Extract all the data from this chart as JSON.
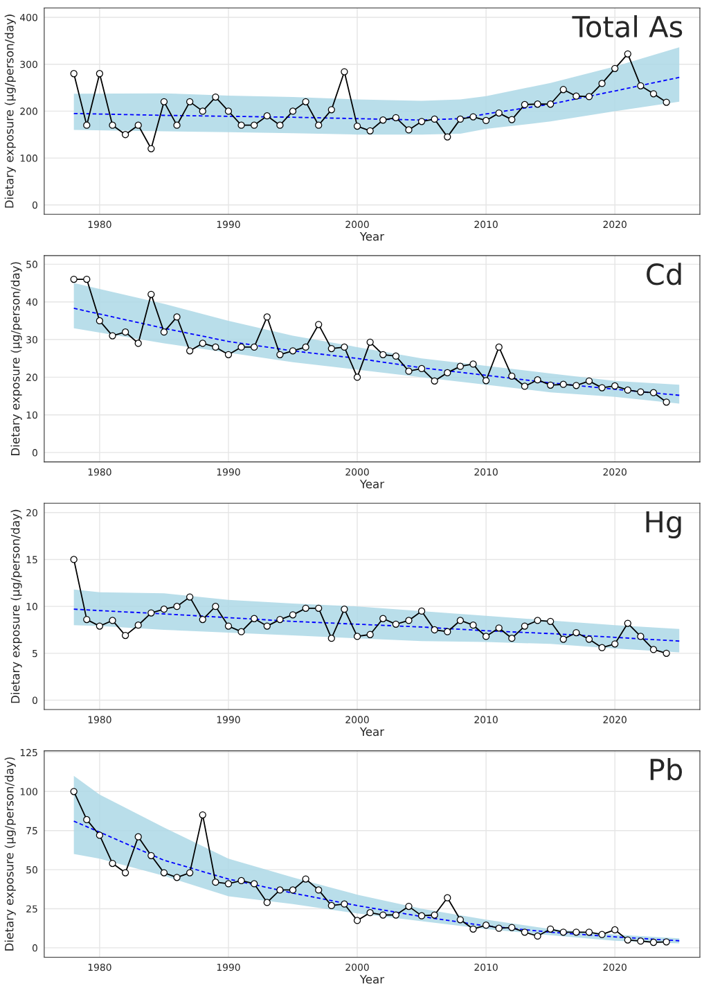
{
  "chart_data": [
    {
      "type": "line",
      "title": "Total As",
      "xlabel": "Year",
      "ylabel": "Dietary exposure (µg/person/day)",
      "xlim": [
        1975.7,
        2026.6
      ],
      "xticks": [
        1980,
        1990,
        2000,
        2010,
        2020
      ],
      "ylim": [
        -20,
        420
      ],
      "yticks": [
        0,
        100,
        200,
        300,
        400
      ],
      "grid": true,
      "legend": false,
      "series": [
        {
          "type": "line",
          "color": "#000000",
          "marker": "circle",
          "line_style": "solid",
          "x": [
            1978,
            1979,
            1980,
            1981,
            1982,
            1983,
            1984,
            1985,
            1986,
            1987,
            1988,
            1989,
            1990,
            1991,
            1992,
            1993,
            1994,
            1995,
            1996,
            1997,
            1998,
            1999,
            2000,
            2001,
            2002,
            2003,
            2004,
            2005,
            2006,
            2007,
            2008,
            2009,
            2010,
            2011,
            2012,
            2013,
            2014,
            2015,
            2016,
            2017,
            2018,
            2019,
            2020,
            2021,
            2022,
            2023,
            2024
          ],
          "values": [
            280,
            170,
            280,
            170,
            150,
            170,
            120,
            220,
            170,
            220,
            200,
            230,
            200,
            170,
            170,
            190,
            170,
            200,
            220,
            170,
            203,
            284,
            168,
            158,
            181,
            186,
            160,
            178,
            183,
            145,
            183,
            188,
            180,
            196,
            182,
            214,
            215,
            215,
            246,
            232,
            231,
            259,
            291,
            322,
            254,
            237,
            219
          ]
        },
        {
          "color": "#0000ff",
          "marker": "none",
          "line_style": "dashed",
          "x": [
            1978,
            1985,
            1990,
            1995,
            2000,
            2005,
            2008,
            2010,
            2015,
            2020,
            2025
          ],
          "values": [
            195,
            191,
            189,
            187,
            184,
            181,
            184,
            194,
            215,
            243,
            272
          ],
          "lower": [
            160,
            157,
            155,
            153,
            150,
            150,
            152,
            162,
            178,
            200,
            220
          ],
          "upper": [
            237,
            238,
            233,
            230,
            225,
            222,
            225,
            232,
            260,
            295,
            336
          ]
        }
      ]
    },
    {
      "type": "line",
      "title": "Cd",
      "xlabel": "Year",
      "ylabel": "Dietary exposure (µg/person/day)",
      "xlim": [
        1975.7,
        2026.6
      ],
      "xticks": [
        1980,
        1990,
        2000,
        2010,
        2020
      ],
      "ylim": [
        -2.5,
        52.3
      ],
      "yticks": [
        0,
        10,
        20,
        30,
        40,
        50
      ],
      "grid": true,
      "legend": false,
      "series": [
        {
          "type": "line",
          "color": "#000000",
          "marker": "circle",
          "line_style": "solid",
          "x": [
            1978,
            1979,
            1980,
            1981,
            1982,
            1983,
            1984,
            1985,
            1986,
            1987,
            1988,
            1989,
            1990,
            1991,
            1992,
            1993,
            1994,
            1995,
            1996,
            1997,
            1998,
            1999,
            2000,
            2001,
            2002,
            2003,
            2004,
            2005,
            2006,
            2007,
            2008,
            2009,
            2010,
            2011,
            2012,
            2013,
            2014,
            2015,
            2016,
            2017,
            2018,
            2019,
            2020,
            2021,
            2022,
            2023,
            2024
          ],
          "values": [
            46,
            46,
            35,
            31,
            32,
            29,
            42,
            32,
            36,
            27,
            29,
            28,
            26,
            28,
            28,
            36,
            26,
            27,
            28,
            34,
            27.6,
            28,
            20,
            29.3,
            26,
            25.6,
            21.6,
            22.3,
            19,
            21.2,
            22.9,
            23.5,
            19.1,
            28,
            20.3,
            17.6,
            19.3,
            17.9,
            18.1,
            17.8,
            19,
            17.2,
            17.7,
            16.6,
            16.1,
            15.9,
            13.4
          ]
        },
        {
          "color": "#0000ff",
          "marker": "none",
          "line_style": "dashed",
          "x": [
            1978,
            1985,
            1990,
            1995,
            2000,
            2005,
            2010,
            2015,
            2020,
            2025
          ],
          "values": [
            38.3,
            33,
            29.5,
            27,
            25,
            22.5,
            20.5,
            18.5,
            16.8,
            15.2
          ],
          "lower": [
            33,
            29,
            26.5,
            24,
            22,
            20,
            18,
            16,
            14.8,
            13
          ],
          "upper": [
            45,
            39.5,
            35,
            31,
            28,
            25,
            23,
            21,
            19,
            18
          ]
        }
      ]
    },
    {
      "type": "line",
      "title": "Hg",
      "xlabel": "Year",
      "ylabel": "Dietary exposure (µg/person/day)",
      "xlim": [
        1975.7,
        2026.6
      ],
      "xticks": [
        1980,
        1990,
        2000,
        2010,
        2020
      ],
      "ylim": [
        -1,
        21
      ],
      "yticks": [
        0,
        5,
        10,
        15,
        20
      ],
      "grid": true,
      "legend": false,
      "series": [
        {
          "type": "line",
          "color": "#000000",
          "marker": "circle",
          "line_style": "solid",
          "x": [
            1978,
            1979,
            1980,
            1981,
            1982,
            1983,
            1984,
            1985,
            1986,
            1987,
            1988,
            1989,
            1990,
            1991,
            1992,
            1993,
            1994,
            1995,
            1996,
            1997,
            1998,
            1999,
            2000,
            2001,
            2002,
            2003,
            2004,
            2005,
            2006,
            2007,
            2008,
            2009,
            2010,
            2011,
            2012,
            2013,
            2014,
            2015,
            2016,
            2017,
            2018,
            2019,
            2020,
            2021,
            2022,
            2023,
            2024
          ],
          "values": [
            15,
            8.6,
            7.9,
            8.5,
            6.9,
            8,
            9.3,
            9.7,
            10,
            11,
            8.6,
            10,
            7.9,
            7.3,
            8.7,
            7.9,
            8.6,
            9.1,
            9.8,
            9.8,
            6.6,
            9.7,
            6.8,
            7,
            8.7,
            8.1,
            8.5,
            9.5,
            7.5,
            7.3,
            8.5,
            8,
            6.8,
            7.7,
            6.6,
            7.9,
            8.5,
            8.4,
            6.5,
            7.2,
            6.5,
            5.6,
            6,
            8.2,
            6.8,
            5.4,
            5
          ]
        },
        {
          "color": "#0000ff",
          "marker": "none",
          "line_style": "dashed",
          "x": [
            1978,
            1980,
            1985,
            1990,
            1995,
            2000,
            2005,
            2010,
            2015,
            2020,
            2025
          ],
          "values": [
            9.7,
            9.55,
            9.2,
            8.8,
            8.4,
            8.1,
            7.8,
            7.4,
            7.1,
            6.7,
            6.3
          ],
          "lower": [
            8,
            7.9,
            7.5,
            7.2,
            6.9,
            6.6,
            6.3,
            6.2,
            6,
            5.5,
            5.1
          ],
          "upper": [
            11.8,
            11.5,
            11.4,
            10.7,
            10.3,
            10,
            9.5,
            9,
            8.5,
            8,
            7.6
          ]
        }
      ]
    },
    {
      "type": "line",
      "title": "Pb",
      "xlabel": "Year",
      "ylabel": "Dietary exposure (µg/person/day)",
      "xlim": [
        1975.7,
        2026.6
      ],
      "xticks": [
        1980,
        1990,
        2000,
        2010,
        2020
      ],
      "ylim": [
        -6,
        126
      ],
      "yticks": [
        0,
        25,
        50,
        75,
        100,
        125
      ],
      "grid": true,
      "legend": false,
      "series": [
        {
          "type": "line",
          "color": "#000000",
          "marker": "circle",
          "line_style": "solid",
          "x": [
            1978,
            1979,
            1980,
            1981,
            1982,
            1983,
            1984,
            1985,
            1986,
            1987,
            1988,
            1989,
            1990,
            1991,
            1992,
            1993,
            1994,
            1995,
            1996,
            1997,
            1998,
            1999,
            2000,
            2001,
            2002,
            2003,
            2004,
            2005,
            2006,
            2007,
            2008,
            2009,
            2010,
            2011,
            2012,
            2013,
            2014,
            2015,
            2016,
            2017,
            2018,
            2019,
            2020,
            2021,
            2022,
            2023,
            2024
          ],
          "values": [
            100,
            82,
            72,
            54,
            48,
            71,
            59,
            48,
            45,
            48,
            85,
            42,
            41,
            43,
            41,
            29,
            37,
            37,
            44,
            37,
            27,
            28,
            17.5,
            22.5,
            21,
            21,
            26.5,
            20.5,
            21,
            32,
            18,
            12,
            14.5,
            12.5,
            13,
            10,
            7.5,
            12,
            10,
            10,
            10,
            8.5,
            11.5,
            5,
            4.3,
            3.5,
            3.8
          ]
        },
        {
          "color": "#0000ff",
          "marker": "none",
          "line_style": "dashed",
          "x": [
            1978,
            1980,
            1985,
            1990,
            1995,
            2000,
            2005,
            2010,
            2015,
            2020,
            2025
          ],
          "values": [
            81,
            74,
            56,
            44,
            35,
            27,
            20,
            14,
            10,
            7,
            4.5
          ],
          "lower": [
            60,
            57,
            46,
            33,
            28,
            22,
            17,
            12,
            8,
            4.5,
            2.8
          ],
          "upper": [
            110,
            98,
            77,
            57,
            45,
            34,
            25,
            18,
            12,
            8.5,
            6
          ]
        }
      ]
    }
  ]
}
